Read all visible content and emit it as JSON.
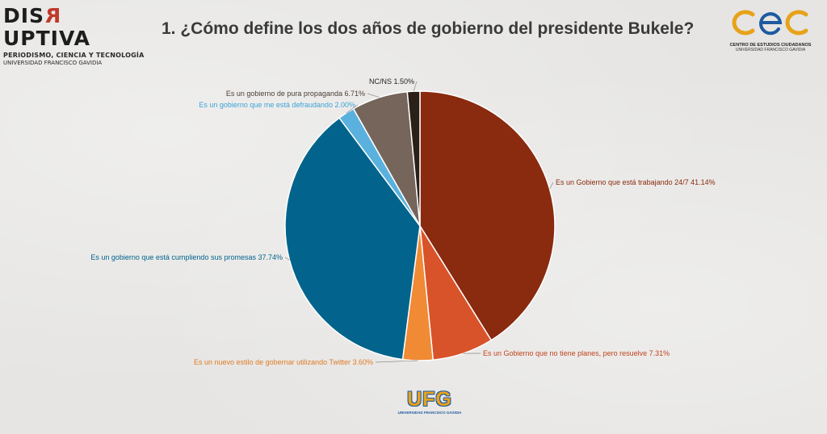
{
  "header": {
    "brand_word_a": "DIS",
    "brand_word_r": "R",
    "brand_word_b": "UPTIVA",
    "brand_tagline": "PERIODISMO, CIENCIA Y TECNOLOGÍA",
    "brand_university": "UNIVERSIDAD FRANCISCO GAVIDIA",
    "cec_name": "CENTRO DE ESTUDIOS CIUDADANOS",
    "cec_university": "UNIVERSIDAD FRANCISCO GAVIDIA"
  },
  "footer": {
    "ufg_word": "UFG",
    "ufg_sub": "UNIVERSIDAD FRANCISCO GAVIDIA"
  },
  "colors": {
    "cec_logo": "#e8a21a",
    "cec_logo_blue": "#1e5aa0"
  },
  "chart_data": {
    "type": "pie",
    "title": "1. ¿Cómo define los dos años de gobierno del presidente Bukele?",
    "slices": [
      {
        "label": "Es un Gobierno que está trabajando 24/7",
        "value_text": "41.14%",
        "value": 41.14,
        "color": "#8a2a0e"
      },
      {
        "label": "Es un Gobierno que no tiene planes, pero resuelve",
        "value_text": "7.31%",
        "value": 7.31,
        "color": "#d9532a"
      },
      {
        "label": "Es un nuevo estilo de gobernar utilizando Twitter",
        "value_text": "3.60%",
        "value": 3.6,
        "color": "#f08a35"
      },
      {
        "label": "Es un gobierno que está cumpliendo sus promesas",
        "value_text": "37.74%",
        "value": 37.74,
        "color": "#02648c"
      },
      {
        "label": "Es un gobierno que me está defraudando",
        "value_text": "2.00%",
        "value": 2.0,
        "color": "#5ab1de"
      },
      {
        "label": "Es un gobierno de pura propaganda",
        "value_text": "6.71%",
        "value": 6.71,
        "color": "#76655b"
      },
      {
        "label": "NC/NS",
        "value_text": "1.50%",
        "value": 1.5,
        "color": "#2a2018"
      }
    ]
  }
}
